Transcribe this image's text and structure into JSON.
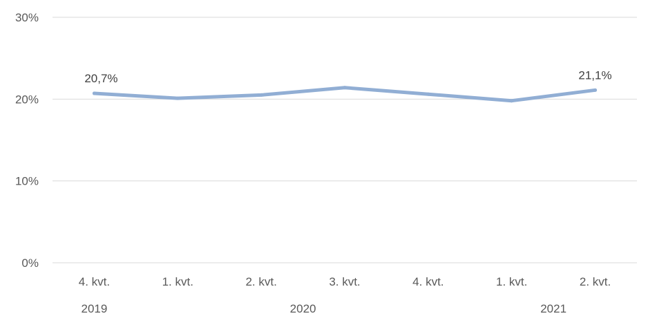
{
  "chart_data": {
    "type": "line",
    "categories": [
      "4. kvt.",
      "1. kvt.",
      "2. kvt.",
      "3. kvt.",
      "4. kvt.",
      "1. kvt.",
      "2. kvt."
    ],
    "year_groups": [
      {
        "label": "2019",
        "start": 0,
        "end": 0
      },
      {
        "label": "2020",
        "start": 1,
        "end": 4
      },
      {
        "label": "2021",
        "start": 5,
        "end": 6
      }
    ],
    "series": [
      {
        "values": [
          20.7,
          20.1,
          20.5,
          21.4,
          20.6,
          19.8,
          21.1
        ],
        "color": "#91aed4"
      }
    ],
    "data_labels": [
      {
        "index": 0,
        "text": "20,7%"
      },
      {
        "index": 6,
        "text": "21,1%"
      }
    ],
    "y_ticks": [
      {
        "value": 0,
        "label": "0%"
      },
      {
        "value": 10,
        "label": "10%"
      },
      {
        "value": 20,
        "label": "20%"
      },
      {
        "value": 30,
        "label": "30%"
      }
    ],
    "ylim": [
      0,
      30
    ],
    "grid": true,
    "legend": "none"
  }
}
